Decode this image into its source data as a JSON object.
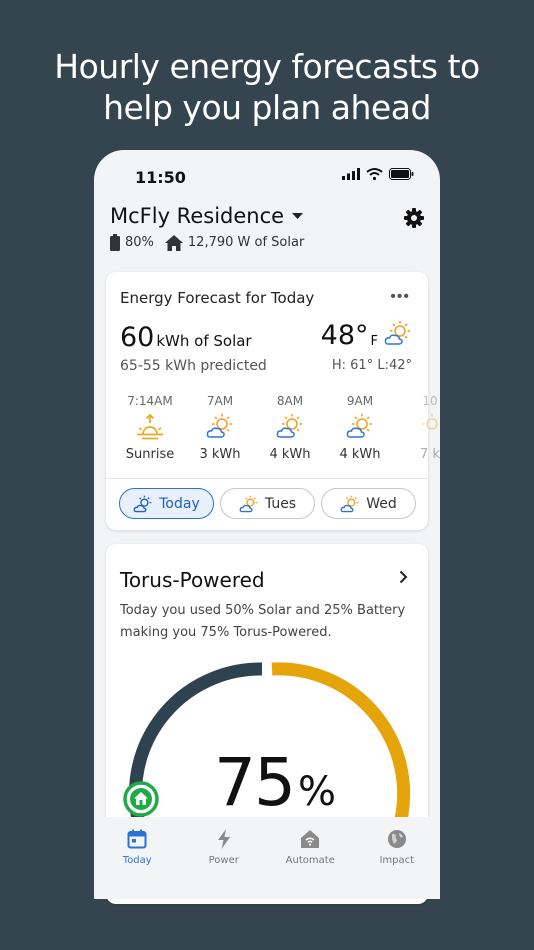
{
  "headline": {
    "line1": "Hourly energy forecasts to",
    "line2": "help you plan ahead"
  },
  "status_bar": {
    "time": "11:50"
  },
  "home": {
    "title": "McFly Residence",
    "battery": "80%",
    "solar": "12,790 W of Solar"
  },
  "forecast": {
    "title": "Energy Forecast for Today",
    "solar_value": "60",
    "solar_unit": "kWh of Solar",
    "predicted": "65-55 kWh predicted",
    "temp_value": "48°",
    "temp_unit": "F",
    "hilo": "H: 61° L:42°",
    "hours": [
      {
        "time": "7:14AM",
        "value": "Sunrise",
        "icon": "sunrise-icon"
      },
      {
        "time": "7AM",
        "value": "3 kWh",
        "icon": "partly-sunny-icon"
      },
      {
        "time": "8AM",
        "value": "4 kWh",
        "icon": "partly-sunny-icon"
      },
      {
        "time": "9AM",
        "value": "4 kWh",
        "icon": "partly-sunny-icon"
      },
      {
        "time": "10",
        "value": "7 k",
        "icon": "partly-sunny-icon"
      }
    ],
    "days": [
      {
        "label": "Today"
      },
      {
        "label": "Tues"
      },
      {
        "label": "Wed"
      }
    ]
  },
  "torus": {
    "title": "Torus-Powered",
    "description": "Today you used 50% Solar and 25% Battery making you 75% Torus-Powered.",
    "percent_value": "75",
    "percent_unit": "%",
    "level": 0.75
  },
  "tabs": [
    {
      "label": "Today"
    },
    {
      "label": "Power"
    },
    {
      "label": "Automate"
    },
    {
      "label": "Impact"
    }
  ],
  "colors": {
    "background": "#35454f",
    "accent": "#2a73d9",
    "solar": "#e5a50a",
    "battery": "#2f4250",
    "sun": "#f0a521",
    "green": "#1faa47"
  }
}
